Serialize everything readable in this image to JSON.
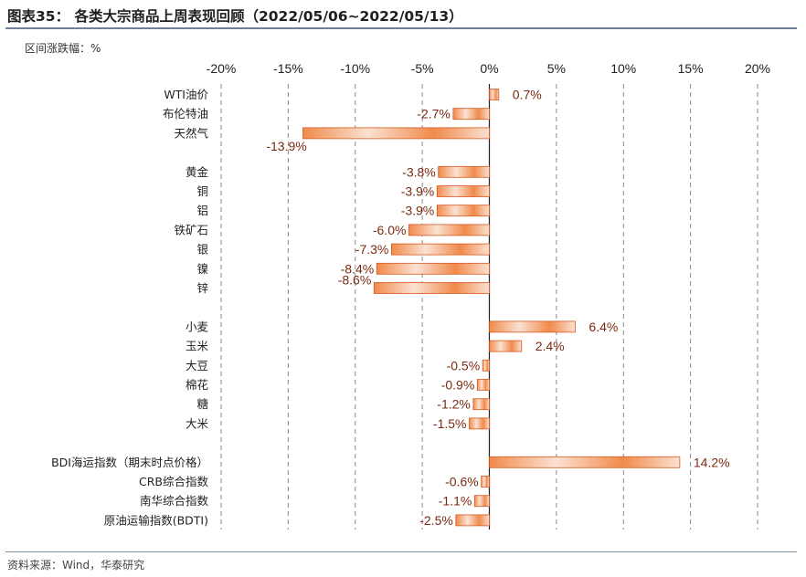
{
  "header": {
    "title": "图表35：  各类大宗商品上周表现回顾（2022/05/06~2022/05/13）",
    "unit": "区间涨跌幅：%"
  },
  "footer": {
    "source": "资料来源：Wind，华泰研究"
  },
  "colors": {
    "bar_edge": "#d65a1f",
    "bar_light": "#fbe1d2",
    "bar_dark": "#f08a4b",
    "grid": "#8a8a8a",
    "label": "#7a2a10"
  },
  "chart_data": {
    "type": "bar",
    "orientation": "horizontal",
    "title": "各类大宗商品上周表现回顾（2022/05/06~2022/05/13）",
    "xlabel": "区间涨跌幅：%",
    "xlim": [
      -20,
      20
    ],
    "xticks": [
      -20,
      -15,
      -10,
      -5,
      0,
      5,
      10,
      15,
      20
    ],
    "xtick_labels": [
      "-20%",
      "-15%",
      "-10%",
      "-5%",
      "0%",
      "5%",
      "10%",
      "15%",
      "20%"
    ],
    "grid": "vertical dashed",
    "categories": [
      "WTI油价",
      "布伦特油",
      "天然气",
      "",
      "黄金",
      "铜",
      "铝",
      "铁矿石",
      "银",
      "镍",
      "锌",
      "",
      "小麦",
      "玉米",
      "大豆",
      "棉花",
      "糖",
      "大米",
      "",
      "BDI海运指数（期末时点价格）",
      "CRB综合指数",
      "南华综合指数",
      "原油运输指数(BDTI)"
    ],
    "values": [
      0.7,
      -2.7,
      -13.9,
      null,
      -3.8,
      -3.9,
      -3.9,
      -6.0,
      -7.3,
      -8.4,
      -8.6,
      null,
      6.4,
      2.4,
      -0.5,
      -0.9,
      -1.2,
      -1.5,
      null,
      14.2,
      -0.6,
      -1.1,
      -2.5
    ],
    "data_labels": [
      "0.7%",
      "-2.7%",
      "-13.9%",
      "",
      "-3.8%",
      "-3.9%",
      "-3.9%",
      "-6.0%",
      "-7.3%",
      "-8.4%",
      "-8.6%",
      "",
      "6.4%",
      "2.4%",
      "-0.5%",
      "-0.9%",
      "-1.2%",
      "-1.5%",
      "",
      "14.2%",
      "-0.6%",
      "-1.1%",
      "-2.5%"
    ]
  }
}
